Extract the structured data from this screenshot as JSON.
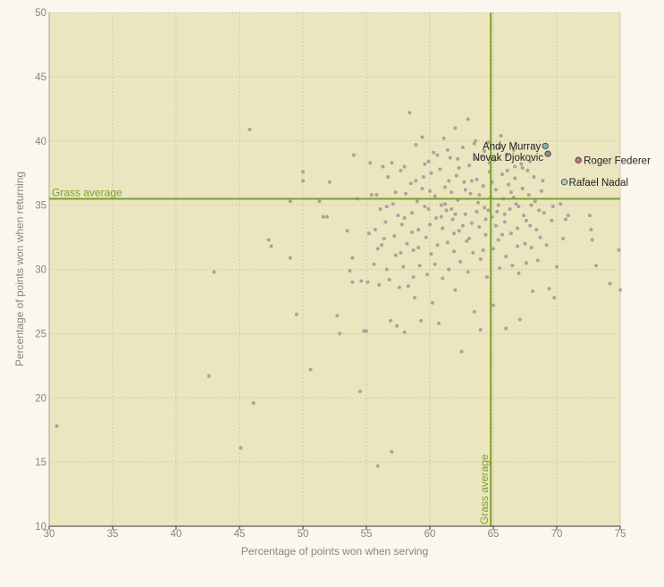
{
  "chart_data": {
    "type": "scatter",
    "title": "",
    "xlabel": "Percentage of points won when serving",
    "ylabel": "Percentage of points won when returning",
    "xlim": [
      30,
      75
    ],
    "ylim": [
      10,
      50
    ],
    "xticks": [
      "30",
      "35",
      "40",
      "45",
      "50",
      "55",
      "60",
      "65",
      "70",
      "75"
    ],
    "yticks": [
      "10",
      "15",
      "20",
      "25",
      "30",
      "35",
      "40",
      "45",
      "50"
    ],
    "grid": true,
    "reference_lines": [
      {
        "orientation": "horizontal",
        "value": 35.5,
        "label": "Grass average"
      },
      {
        "orientation": "vertical",
        "value": 64.8,
        "label": "Grass average"
      }
    ],
    "highlighted": [
      {
        "name": "Andy Murray",
        "x": 69.1,
        "y": 39.6,
        "color": "#7fb5a8"
      },
      {
        "name": "Novak Djokovic",
        "x": 69.3,
        "y": 39.0,
        "color": "#8c8c8c"
      },
      {
        "name": "Roger Federer",
        "x": 71.7,
        "y": 38.5,
        "color": "#c47777"
      },
      {
        "name": "Rafael Nadal",
        "x": 70.6,
        "y": 36.8,
        "color": "#a8cbe0"
      }
    ],
    "points": [
      [
        30.6,
        17.8
      ],
      [
        42.6,
        21.7
      ],
      [
        43.0,
        29.8
      ],
      [
        45.1,
        16.1
      ],
      [
        45.8,
        40.9
      ],
      [
        46.1,
        19.6
      ],
      [
        47.3,
        32.3
      ],
      [
        47.5,
        31.8
      ],
      [
        49.0,
        35.3
      ],
      [
        49.0,
        30.9
      ],
      [
        49.5,
        26.5
      ],
      [
        50.0,
        37.6
      ],
      [
        50.0,
        36.9
      ],
      [
        50.6,
        22.2
      ],
      [
        51.3,
        35.3
      ],
      [
        51.6,
        34.1
      ],
      [
        51.9,
        34.1
      ],
      [
        52.1,
        36.8
      ],
      [
        52.7,
        26.4
      ],
      [
        52.9,
        25.0
      ],
      [
        53.5,
        33.0
      ],
      [
        53.7,
        29.9
      ],
      [
        53.9,
        29.0
      ],
      [
        53.9,
        30.9
      ],
      [
        54.0,
        38.9
      ],
      [
        54.3,
        35.5
      ],
      [
        54.5,
        20.5
      ],
      [
        54.6,
        29.1
      ],
      [
        54.8,
        25.2
      ],
      [
        55.0,
        25.2
      ],
      [
        55.1,
        29.0
      ],
      [
        55.2,
        32.8
      ],
      [
        55.3,
        38.3
      ],
      [
        55.4,
        35.8
      ],
      [
        55.6,
        30.4
      ],
      [
        55.7,
        33.1
      ],
      [
        55.8,
        35.8
      ],
      [
        55.9,
        14.7
      ],
      [
        56.0,
        28.8
      ],
      [
        56.1,
        34.7
      ],
      [
        56.2,
        31.9
      ],
      [
        56.3,
        38.0
      ],
      [
        56.4,
        32.4
      ],
      [
        56.5,
        33.7
      ],
      [
        56.6,
        30.0
      ],
      [
        56.7,
        37.2
      ],
      [
        56.8,
        29.2
      ],
      [
        56.9,
        26.0
      ],
      [
        57.0,
        15.8
      ],
      [
        57.0,
        38.3
      ],
      [
        57.1,
        35.1
      ],
      [
        57.2,
        32.6
      ],
      [
        57.3,
        31.1
      ],
      [
        57.4,
        25.6
      ],
      [
        57.5,
        34.2
      ],
      [
        57.6,
        28.6
      ],
      [
        57.7,
        37.7
      ],
      [
        57.8,
        33.5
      ],
      [
        57.9,
        30.2
      ],
      [
        58.0,
        38.0
      ],
      [
        58.0,
        25.1
      ],
      [
        58.1,
        35.9
      ],
      [
        58.2,
        32.0
      ],
      [
        58.3,
        28.7
      ],
      [
        58.4,
        42.2
      ],
      [
        58.5,
        36.7
      ],
      [
        58.6,
        34.4
      ],
      [
        58.7,
        31.5
      ],
      [
        58.8,
        27.8
      ],
      [
        58.9,
        39.7
      ],
      [
        59.0,
        35.3
      ],
      [
        59.1,
        33.1
      ],
      [
        59.2,
        30.3
      ],
      [
        59.3,
        26.0
      ],
      [
        59.4,
        40.3
      ],
      [
        59.5,
        37.2
      ],
      [
        59.6,
        34.9
      ],
      [
        59.7,
        32.5
      ],
      [
        59.8,
        29.6
      ],
      [
        59.9,
        38.4
      ],
      [
        60.0,
        36.1
      ],
      [
        60.0,
        33.5
      ],
      [
        60.1,
        31.2
      ],
      [
        60.2,
        27.4
      ],
      [
        60.3,
        39.1
      ],
      [
        60.4,
        35.7
      ],
      [
        60.5,
        34.0
      ],
      [
        60.6,
        31.9
      ],
      [
        60.7,
        25.8
      ],
      [
        60.8,
        37.8
      ],
      [
        60.9,
        35.0
      ],
      [
        61.0,
        33.2
      ],
      [
        61.0,
        29.3
      ],
      [
        61.1,
        40.2
      ],
      [
        61.2,
        36.4
      ],
      [
        61.3,
        34.6
      ],
      [
        61.4,
        32.1
      ],
      [
        61.5,
        30.0
      ],
      [
        61.6,
        38.7
      ],
      [
        61.7,
        36.0
      ],
      [
        61.8,
        33.9
      ],
      [
        61.9,
        31.4
      ],
      [
        62.0,
        28.4
      ],
      [
        62.0,
        41.0
      ],
      [
        62.1,
        37.3
      ],
      [
        62.2,
        35.4
      ],
      [
        62.3,
        33.0
      ],
      [
        62.4,
        30.6
      ],
      [
        62.5,
        23.6
      ],
      [
        62.6,
        39.5
      ],
      [
        62.7,
        36.8
      ],
      [
        62.8,
        34.3
      ],
      [
        62.9,
        32.2
      ],
      [
        63.0,
        29.8
      ],
      [
        63.0,
        41.7
      ],
      [
        63.1,
        38.1
      ],
      [
        63.2,
        35.9
      ],
      [
        63.3,
        33.6
      ],
      [
        63.4,
        31.3
      ],
      [
        63.5,
        26.7
      ],
      [
        63.6,
        40.0
      ],
      [
        63.7,
        37.0
      ],
      [
        63.8,
        35.2
      ],
      [
        63.9,
        33.3
      ],
      [
        64.0,
        30.8
      ],
      [
        64.0,
        25.3
      ],
      [
        64.1,
        38.8
      ],
      [
        64.2,
        36.5
      ],
      [
        64.3,
        34.8
      ],
      [
        64.4,
        32.7
      ],
      [
        64.5,
        29.4
      ],
      [
        64.6,
        39.9
      ],
      [
        64.7,
        37.6
      ],
      [
        64.8,
        35.6
      ],
      [
        64.9,
        34.1
      ],
      [
        65.0,
        31.6
      ],
      [
        65.0,
        27.2
      ],
      [
        65.1,
        38.5
      ],
      [
        65.2,
        36.2
      ],
      [
        65.3,
        34.5
      ],
      [
        65.4,
        32.3
      ],
      [
        65.5,
        30.1
      ],
      [
        65.6,
        40.4
      ],
      [
        65.7,
        37.4
      ],
      [
        65.8,
        35.5
      ],
      [
        65.9,
        33.7
      ],
      [
        66.0,
        31.0
      ],
      [
        66.0,
        25.4
      ],
      [
        66.1,
        38.9
      ],
      [
        66.2,
        36.6
      ],
      [
        66.3,
        34.7
      ],
      [
        66.4,
        32.8
      ],
      [
        66.5,
        30.3
      ],
      [
        66.6,
        39.3
      ],
      [
        66.7,
        37.1
      ],
      [
        66.8,
        35.1
      ],
      [
        66.9,
        33.2
      ],
      [
        67.0,
        29.7
      ],
      [
        67.1,
        26.1
      ],
      [
        67.2,
        38.2
      ],
      [
        67.3,
        36.3
      ],
      [
        67.4,
        34.2
      ],
      [
        67.5,
        32.0
      ],
      [
        67.6,
        30.5
      ],
      [
        67.7,
        37.7
      ],
      [
        67.8,
        35.8
      ],
      [
        67.9,
        33.4
      ],
      [
        68.0,
        31.7
      ],
      [
        68.1,
        28.3
      ],
      [
        68.2,
        37.2
      ],
      [
        68.3,
        35.3
      ],
      [
        68.4,
        33.1
      ],
      [
        68.5,
        30.7
      ],
      [
        68.6,
        34.6
      ],
      [
        68.7,
        32.5
      ],
      [
        68.8,
        36.1
      ],
      [
        69.0,
        34.4
      ],
      [
        69.2,
        31.9
      ],
      [
        69.4,
        28.5
      ],
      [
        69.6,
        33.8
      ],
      [
        69.8,
        27.8
      ],
      [
        70.0,
        30.2
      ],
      [
        70.3,
        35.1
      ],
      [
        70.5,
        32.4
      ],
      [
        70.7,
        33.9
      ],
      [
        70.9,
        34.2
      ],
      [
        72.6,
        34.2
      ],
      [
        72.7,
        33.1
      ],
      [
        72.8,
        32.3
      ],
      [
        73.1,
        30.3
      ],
      [
        74.2,
        28.9
      ],
      [
        74.9,
        31.5
      ],
      [
        75.0,
        28.4
      ],
      [
        58.7,
        29.4
      ],
      [
        59.1,
        31.7
      ],
      [
        59.9,
        34.7
      ],
      [
        60.4,
        30.4
      ],
      [
        61.2,
        35.1
      ],
      [
        62.0,
        34.3
      ],
      [
        62.6,
        33.4
      ],
      [
        63.3,
        36.9
      ],
      [
        63.9,
        35.8
      ],
      [
        64.4,
        33.9
      ],
      [
        64.9,
        36.8
      ],
      [
        65.4,
        35.0
      ],
      [
        65.9,
        34.3
      ],
      [
        66.4,
        36.0
      ],
      [
        67.0,
        34.9
      ],
      [
        67.6,
        33.8
      ],
      [
        68.0,
        35.0
      ],
      [
        61.5,
        36.9
      ],
      [
        62.3,
        37.9
      ],
      [
        63.7,
        34.5
      ],
      [
        64.6,
        34.6
      ],
      [
        65.2,
        33.4
      ],
      [
        66.6,
        35.6
      ],
      [
        60.9,
        34.1
      ],
      [
        61.9,
        32.8
      ],
      [
        63.1,
        32.4
      ],
      [
        64.2,
        31.5
      ],
      [
        65.7,
        32.7
      ],
      [
        66.9,
        31.8
      ],
      [
        57.3,
        36.0
      ],
      [
        58.0,
        34.0
      ],
      [
        58.6,
        32.9
      ],
      [
        59.4,
        36.3
      ],
      [
        60.1,
        37.5
      ],
      [
        61.7,
        34.7
      ],
      [
        62.8,
        36.2
      ],
      [
        63.6,
        38.6
      ],
      [
        64.7,
        38.3
      ],
      [
        66.1,
        37.7
      ],
      [
        67.3,
        37.9
      ],
      [
        68.9,
        36.9
      ],
      [
        69.7,
        34.9
      ],
      [
        55.9,
        31.6
      ],
      [
        56.6,
        34.9
      ],
      [
        57.7,
        31.3
      ],
      [
        58.9,
        36.9
      ],
      [
        59.6,
        38.2
      ],
      [
        60.6,
        38.9
      ],
      [
        61.4,
        39.3
      ],
      [
        62.2,
        38.6
      ],
      [
        63.5,
        39.8
      ],
      [
        64.3,
        39.2
      ],
      [
        65.5,
        39.5
      ],
      [
        66.7,
        38.0
      ],
      [
        67.9,
        38.4
      ]
    ]
  }
}
